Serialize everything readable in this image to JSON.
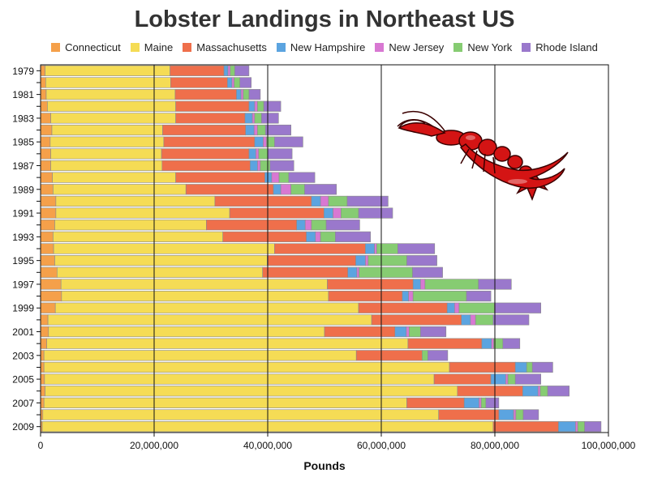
{
  "title": "Lobster Landings in Northeast US",
  "x_axis_label": "Pounds",
  "colors": {
    "Connecticut": "#f5a04a",
    "Maine": "#f5dc55",
    "Massachusetts": "#ef6f4b",
    "New Hampshire": "#5ba4e0",
    "New Jersey": "#d878d2",
    "New York": "#86cc72",
    "Rhode Island": "#9a78cc"
  },
  "decoration": {
    "image": "lobster-illustration"
  },
  "chart_data": {
    "type": "bar",
    "orientation": "horizontal",
    "stacked": true,
    "categories": [
      "1979",
      "1980",
      "1981",
      "1982",
      "1983",
      "1984",
      "1985",
      "1986",
      "1987",
      "1988",
      "1989",
      "1990",
      "1991",
      "1992",
      "1993",
      "1994",
      "1995",
      "1996",
      "1997",
      "1998",
      "1999",
      "2000",
      "2001",
      "2002",
      "2003",
      "2004",
      "2005",
      "2006",
      "2007",
      "2008",
      "2009"
    ],
    "y_tick_labels": [
      "1979",
      "1981",
      "1983",
      "1985",
      "1987",
      "1989",
      "1991",
      "1993",
      "1995",
      "1997",
      "1999",
      "2001",
      "2003",
      "2005",
      "2007",
      "2009"
    ],
    "x_ticks": [
      "0",
      "20,000,000",
      "40,000,000",
      "60,000,000",
      "80,000,000",
      "100,000,000"
    ],
    "xlim": [
      0,
      100000000
    ],
    "legend_position": "top",
    "series": [
      {
        "name": "Connecticut",
        "values": [
          800000,
          900000,
          1000000,
          1200000,
          1800000,
          2000000,
          1700000,
          1800000,
          1800000,
          2100000,
          2200000,
          2700000,
          2700000,
          2500000,
          2200000,
          2300000,
          2500000,
          2900000,
          3600000,
          3700000,
          2600000,
          1300000,
          1400000,
          1100000,
          600000,
          600000,
          700000,
          800000,
          600000,
          400000,
          300000
        ]
      },
      {
        "name": "Maine",
        "values": [
          22000000,
          22000000,
          22700000,
          22600000,
          22000000,
          19500000,
          20000000,
          19500000,
          19600000,
          21700000,
          23400000,
          28000000,
          30600000,
          26700000,
          29900000,
          38900000,
          37400000,
          36200000,
          46900000,
          47000000,
          53400000,
          57000000,
          48600000,
          63600000,
          55000000,
          71400000,
          68600000,
          72600000,
          63900000,
          69700000,
          79400000
        ]
      },
      {
        "name": "Massachusetts",
        "values": [
          9500000,
          10000000,
          10800000,
          12900000,
          12200000,
          14600000,
          16000000,
          15400000,
          15500000,
          15700000,
          15400000,
          17000000,
          16600000,
          15900000,
          14700000,
          16000000,
          15600000,
          15000000,
          15100000,
          13000000,
          15600000,
          15800000,
          12400000,
          13000000,
          11600000,
          11600000,
          10000000,
          11500000,
          10100000,
          10600000,
          11500000
        ]
      },
      {
        "name": "New Hampshire",
        "values": [
          700000,
          800000,
          800000,
          1000000,
          1300000,
          1500000,
          1500000,
          1200000,
          1300000,
          1200000,
          1300000,
          1600000,
          1600000,
          1500000,
          1600000,
          1600000,
          1700000,
          1600000,
          1300000,
          1100000,
          1300000,
          1600000,
          2000000,
          1700000,
          0,
          2000000,
          2600000,
          2700000,
          2600000,
          2600000,
          3000000
        ]
      },
      {
        "name": "New Jersey",
        "values": [
          400000,
          400000,
          400000,
          500000,
          400000,
          600000,
          600000,
          500000,
          500000,
          1300000,
          1800000,
          1400000,
          1400000,
          1100000,
          900000,
          400000,
          500000,
          400000,
          800000,
          800000,
          800000,
          900000,
          500000,
          400000,
          0,
          0,
          400000,
          400000,
          400000,
          400000,
          400000
        ]
      },
      {
        "name": "New York",
        "values": [
          800000,
          1000000,
          1000000,
          1100000,
          1200000,
          1400000,
          1400000,
          1600000,
          1700000,
          1700000,
          2400000,
          3300000,
          3100000,
          2600000,
          2600000,
          3700000,
          6800000,
          9400000,
          9400000,
          9400000,
          6200000,
          3100000,
          2000000,
          1600000,
          1000000,
          1000000,
          1300000,
          1300000,
          800000,
          1300000,
          1200000
        ]
      },
      {
        "name": "Rhode Island",
        "values": [
          2500000,
          2000000,
          2000000,
          3000000,
          3000000,
          4500000,
          5000000,
          4300000,
          4200000,
          4600000,
          5600000,
          7200000,
          6000000,
          5900000,
          6200000,
          6500000,
          5300000,
          5300000,
          5800000,
          4300000,
          8200000,
          6300000,
          4500000,
          3000000,
          3500000,
          3600000,
          4500000,
          3800000,
          2300000,
          2700000,
          2900000
        ]
      }
    ]
  }
}
